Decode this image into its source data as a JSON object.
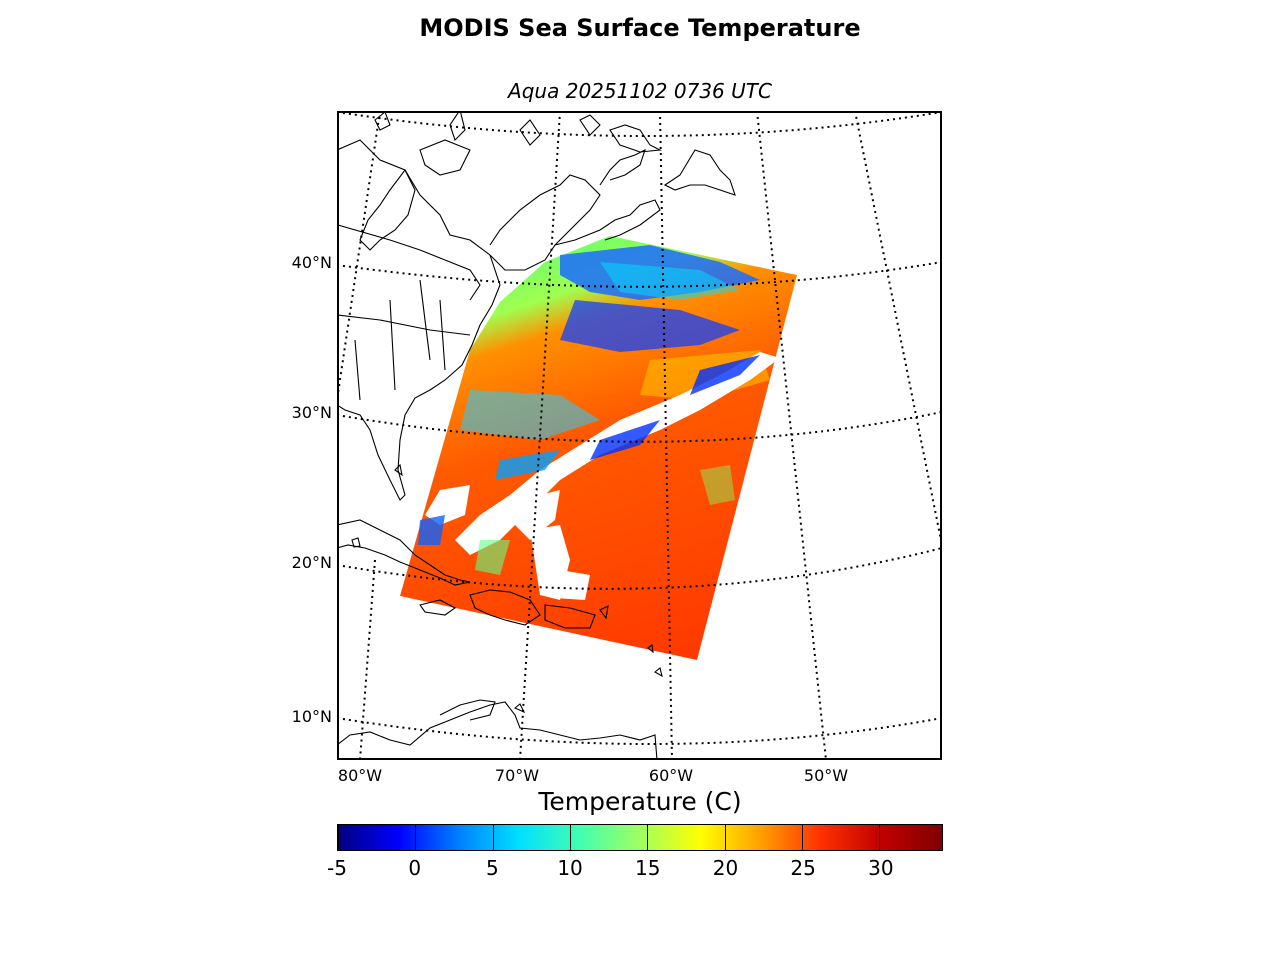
{
  "title": "MODIS Sea Surface Temperature",
  "subtitle": "Aqua 20251102 0736 UTC",
  "map": {
    "latitude_labels": [
      "40°N",
      "30°N",
      "20°N",
      "10°N"
    ],
    "longitude_labels": [
      "80°W",
      "70°W",
      "60°W",
      "50°W"
    ]
  },
  "colorbar": {
    "label": "Temperature (C)",
    "ticks": [
      "-5",
      "0",
      "5",
      "10",
      "15",
      "20",
      "25",
      "30"
    ],
    "min": -5,
    "max": 34,
    "colormap": "jet",
    "colors": [
      "#000080",
      "#0000ff",
      "#0080ff",
      "#00e0ff",
      "#40ffb0",
      "#a0ff60",
      "#ffff00",
      "#ffa000",
      "#ff3000",
      "#c00000",
      "#800000"
    ]
  }
}
